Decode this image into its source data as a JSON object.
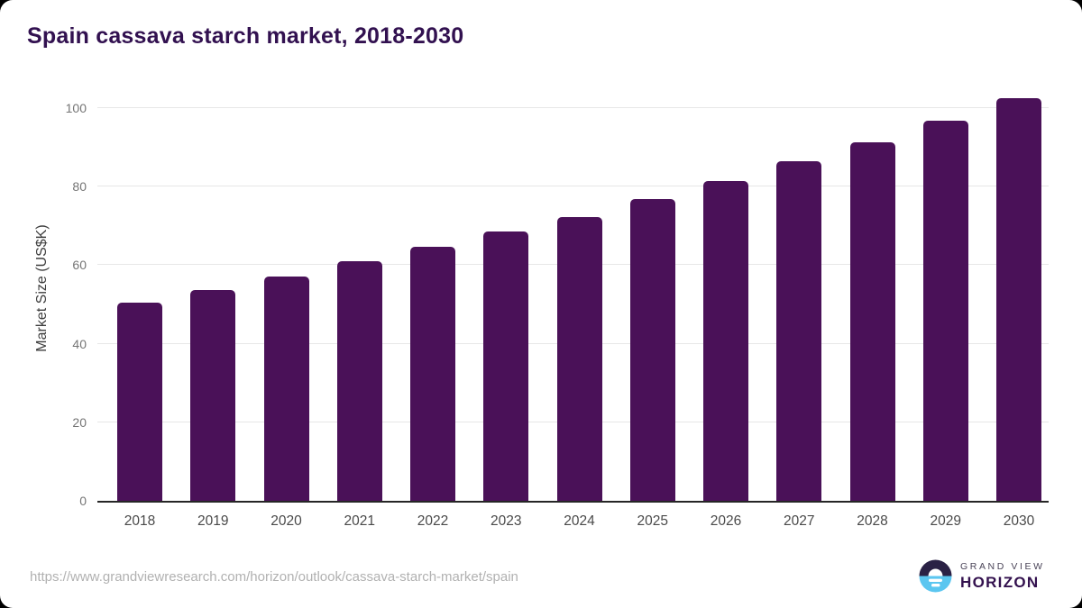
{
  "page": {
    "background_color": "#000000",
    "card_color": "#ffffff"
  },
  "chart_data": {
    "type": "bar",
    "title": "Spain cassava starch market, 2018-2030",
    "categories": [
      "2018",
      "2019",
      "2020",
      "2021",
      "2022",
      "2023",
      "2024",
      "2025",
      "2026",
      "2027",
      "2028",
      "2029",
      "2030"
    ],
    "values": [
      50.4,
      53.7,
      57.2,
      60.9,
      64.6,
      68.6,
      72.3,
      76.9,
      81.5,
      86.4,
      91.4,
      96.7,
      102.6
    ],
    "xlabel": "",
    "ylabel": "Market Size (US$K)",
    "yticks": [
      0,
      20,
      40,
      60,
      80,
      100
    ],
    "ylim": [
      0,
      105
    ],
    "grid": true,
    "legend": false,
    "bar_color": "#4a1158",
    "gridline_color": "#e7e7e7",
    "axis_line_color": "#262626",
    "title_color": "#321150"
  },
  "footer": {
    "source_url": "https://www.grandviewresearch.com/horizon/outlook/cassava-starch-market/spain",
    "logo": {
      "brand_top": "GRAND VIEW",
      "brand_bottom": "HORIZON",
      "circle_top_color": "#2a2145",
      "circle_bottom_color": "#5bc6f0"
    }
  }
}
